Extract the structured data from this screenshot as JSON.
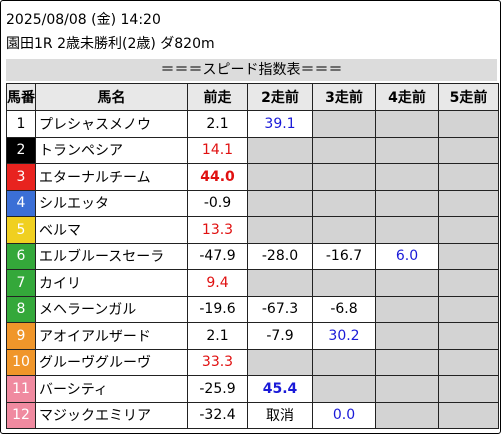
{
  "header": {
    "datetime": "2025/08/08 (金) 14:20",
    "race": "園田1R 2歳未勝利(2歳) ダ820m"
  },
  "table": {
    "title": "＝＝＝スピード指数表＝＝＝",
    "columns": [
      "馬番",
      "馬名",
      "前走",
      "2走前",
      "3走前",
      "4走前",
      "5走前"
    ],
    "rows": [
      {
        "no": "1",
        "frame_color": "#ffffff",
        "no_color": "#000000",
        "name": "プレシャスメノウ",
        "speeds": [
          {
            "text": "2.1",
            "color": "#000000"
          },
          {
            "text": "39.1",
            "color": "#1a1ad8"
          }
        ]
      },
      {
        "no": "2",
        "frame_color": "#000000",
        "no_color": "#ffffff",
        "name": "トランペシア",
        "speeds": [
          {
            "text": "14.1",
            "color": "#e01010"
          }
        ]
      },
      {
        "no": "3",
        "frame_color": "#e8231f",
        "no_color": "#ffffff",
        "name": "エターナルチーム",
        "speeds": [
          {
            "text": "44.0",
            "color": "#e01010",
            "bold": true
          }
        ]
      },
      {
        "no": "4",
        "frame_color": "#3b6fd6",
        "no_color": "#ffffff",
        "name": "シルエッタ",
        "speeds": [
          {
            "text": "-0.9",
            "color": "#000000"
          }
        ]
      },
      {
        "no": "5",
        "frame_color": "#f0d020",
        "no_color": "#ffffff",
        "name": "ベルマ",
        "speeds": [
          {
            "text": "13.3",
            "color": "#e01010"
          }
        ]
      },
      {
        "no": "6",
        "frame_color": "#34a83a",
        "no_color": "#ffffff",
        "name": "エルブルースセーラ",
        "speeds": [
          {
            "text": "-47.9",
            "color": "#000000"
          },
          {
            "text": "-28.0",
            "color": "#000000"
          },
          {
            "text": "-16.7",
            "color": "#000000"
          },
          {
            "text": "6.0",
            "color": "#1a1ad8"
          }
        ]
      },
      {
        "no": "7",
        "frame_color": "#34a83a",
        "no_color": "#ffffff",
        "name": "カイリ",
        "speeds": [
          {
            "text": "9.4",
            "color": "#e01010"
          }
        ]
      },
      {
        "no": "8",
        "frame_color": "#34a83a",
        "no_color": "#ffffff",
        "name": "メヘラーンガル",
        "speeds": [
          {
            "text": "-19.6",
            "color": "#000000"
          },
          {
            "text": "-67.3",
            "color": "#000000"
          },
          {
            "text": "-6.8",
            "color": "#000000"
          }
        ]
      },
      {
        "no": "9",
        "frame_color": "#f0962a",
        "no_color": "#ffffff",
        "name": "アオイアルザード",
        "speeds": [
          {
            "text": "2.1",
            "color": "#000000"
          },
          {
            "text": "-7.9",
            "color": "#000000"
          },
          {
            "text": "30.2",
            "color": "#1a1ad8"
          }
        ]
      },
      {
        "no": "10",
        "frame_color": "#f0962a",
        "no_color": "#ffffff",
        "name": "グルーヴグルーヴ",
        "speeds": [
          {
            "text": "33.3",
            "color": "#e01010"
          }
        ]
      },
      {
        "no": "11",
        "frame_color": "#f08aa0",
        "no_color": "#ffffff",
        "name": "バーシティ",
        "speeds": [
          {
            "text": "-25.9",
            "color": "#000000"
          },
          {
            "text": "45.4",
            "color": "#1a1ad8",
            "bold": true
          }
        ]
      },
      {
        "no": "12",
        "frame_color": "#f08aa0",
        "no_color": "#ffffff",
        "name": "マジックエミリア",
        "speeds": [
          {
            "text": "-32.4",
            "color": "#000000"
          },
          {
            "text": "取消",
            "color": "#000000"
          },
          {
            "text": "0.0",
            "color": "#1a1ad8"
          }
        ]
      }
    ]
  }
}
